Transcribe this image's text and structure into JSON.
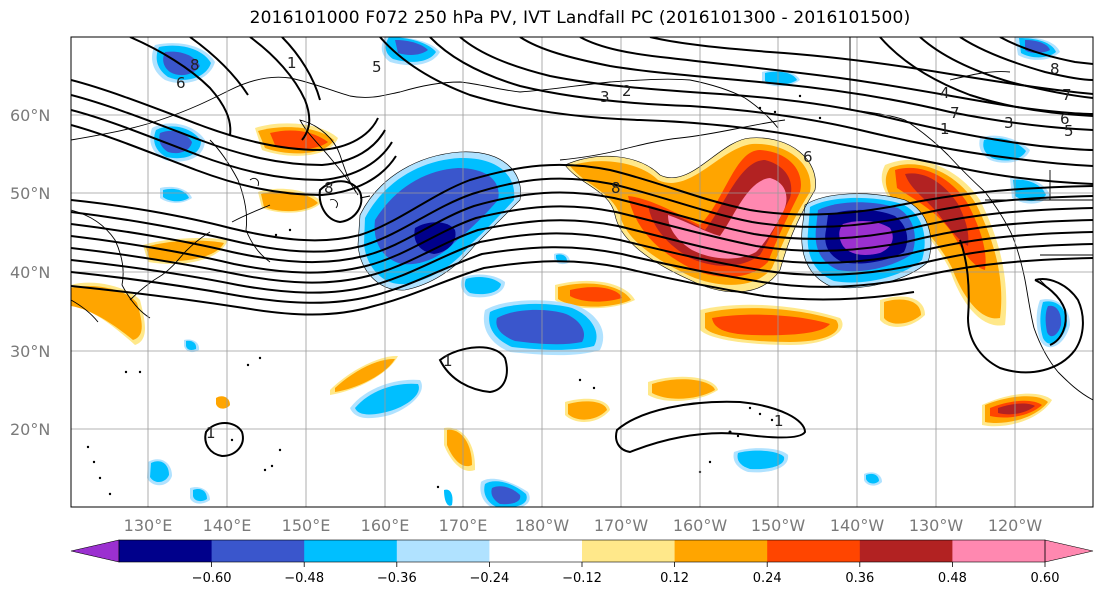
{
  "title": "2016101000 F072 250 hPa PV, IVT Landfall PC (2016101300 - 2016101500)",
  "map": {
    "lat_ticks": [
      "60°N",
      "50°N",
      "40°N",
      "30°N",
      "20°N"
    ],
    "lon_ticks": [
      "130°E",
      "140°E",
      "150°E",
      "160°E",
      "170°E",
      "180°W",
      "170°W",
      "160°W",
      "150°W",
      "140°W",
      "130°W",
      "120°W"
    ],
    "grid": true,
    "contour_labels": [
      "8",
      "6",
      "1",
      "5",
      "3",
      "2",
      "4",
      "7",
      "1",
      "3",
      "6",
      "5",
      "8",
      "7",
      "6",
      "8",
      "1",
      "1",
      "1",
      "8"
    ]
  },
  "colorbar": {
    "ticks": [
      "−0.60",
      "−0.48",
      "−0.36",
      "−0.24",
      "−0.12",
      "0.12",
      "0.24",
      "0.36",
      "0.48",
      "0.60"
    ],
    "colors": [
      "#9b30d0",
      "#00008b",
      "#3a56cc",
      "#00bfff",
      "#b0e2ff",
      "#ffffff",
      "#ffe88a",
      "#ffa500",
      "#ff4500",
      "#b22222",
      "#ff88b0",
      "#ff88b0"
    ]
  }
}
